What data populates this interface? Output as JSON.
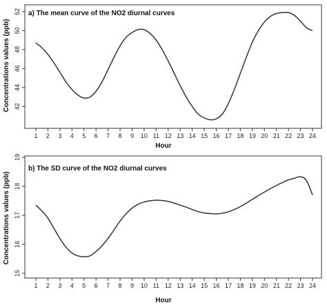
{
  "chart_data": [
    {
      "type": "line",
      "title": "a) The mean curve of the NO2 diurnal curves",
      "xlabel": "Hour",
      "ylabel": "Concentrations values (ppb)",
      "xlim": [
        1,
        24
      ],
      "ylim": [
        40.5,
        52.5
      ],
      "x_ticks": [
        "1",
        "2",
        "3",
        "4",
        "5",
        "6",
        "7",
        "8",
        "9",
        "10",
        "11",
        "12",
        "13",
        "14",
        "15",
        "16",
        "17",
        "18",
        "19",
        "20",
        "21",
        "22",
        "23",
        "24"
      ],
      "y_ticks": [
        42,
        44,
        46,
        48,
        50,
        52
      ],
      "grid": false,
      "series": [
        {
          "color": "#333333",
          "x": [
            1,
            1.5,
            2,
            2.5,
            3,
            3.5,
            4,
            4.5,
            5,
            5.5,
            6,
            6.5,
            7,
            7.5,
            8,
            8.5,
            9,
            9.5,
            10,
            10.5,
            11,
            11.5,
            12,
            12.5,
            13,
            13.5,
            14,
            14.5,
            15,
            15.5,
            16,
            16.5,
            17,
            17.5,
            18,
            18.5,
            19,
            19.5,
            20,
            20.5,
            21,
            21.5,
            22,
            22.5,
            23,
            23.5,
            24
          ],
          "y": [
            48.7,
            48.2,
            47.5,
            46.6,
            45.6,
            44.6,
            43.8,
            43.2,
            42.9,
            43.0,
            43.6,
            44.6,
            45.9,
            47.2,
            48.4,
            49.3,
            49.8,
            50.1,
            50.1,
            49.7,
            49.0,
            48.0,
            46.8,
            45.5,
            44.2,
            43.0,
            42.0,
            41.2,
            40.8,
            40.6,
            40.7,
            41.2,
            42.3,
            43.8,
            45.5,
            47.2,
            48.8,
            50.0,
            50.9,
            51.5,
            51.8,
            51.9,
            51.9,
            51.6,
            51.0,
            50.3,
            50.0
          ]
        }
      ]
    },
    {
      "type": "line",
      "title": "b) The SD curve of the NO2 diurnal curves",
      "xlabel": "Hour",
      "ylabel": "Concentrations values (ppb)",
      "xlim": [
        1,
        24
      ],
      "ylim": [
        15,
        19
      ],
      "x_ticks": [
        "1",
        "2",
        "3",
        "4",
        "5",
        "6",
        "7",
        "8",
        "9",
        "10",
        "11",
        "12",
        "13",
        "14",
        "15",
        "16",
        "17",
        "18",
        "19",
        "20",
        "21",
        "22",
        "23",
        "24"
      ],
      "y_ticks": [
        15,
        16,
        17,
        18,
        19
      ],
      "grid": false,
      "series": [
        {
          "color": "#333333",
          "x": [
            1,
            1.5,
            2,
            2.5,
            3,
            3.5,
            4,
            4.5,
            5,
            5.5,
            6,
            6.5,
            7,
            7.5,
            8,
            8.5,
            9,
            9.5,
            10,
            10.5,
            11,
            11.5,
            12,
            12.5,
            13,
            13.5,
            14,
            14.5,
            15,
            15.5,
            16,
            16.5,
            17,
            17.5,
            18,
            18.5,
            19,
            19.5,
            20,
            20.5,
            21,
            21.5,
            22,
            22.5,
            23,
            23.5,
            24
          ],
          "y": [
            17.35,
            17.15,
            16.9,
            16.55,
            16.2,
            15.9,
            15.7,
            15.6,
            15.57,
            15.6,
            15.75,
            15.95,
            16.2,
            16.5,
            16.8,
            17.05,
            17.25,
            17.38,
            17.46,
            17.5,
            17.52,
            17.51,
            17.48,
            17.42,
            17.35,
            17.28,
            17.2,
            17.13,
            17.08,
            17.06,
            17.05,
            17.07,
            17.12,
            17.2,
            17.3,
            17.42,
            17.55,
            17.68,
            17.8,
            17.92,
            18.03,
            18.13,
            18.22,
            18.28,
            18.33,
            18.2,
            17.7
          ]
        }
      ]
    }
  ]
}
